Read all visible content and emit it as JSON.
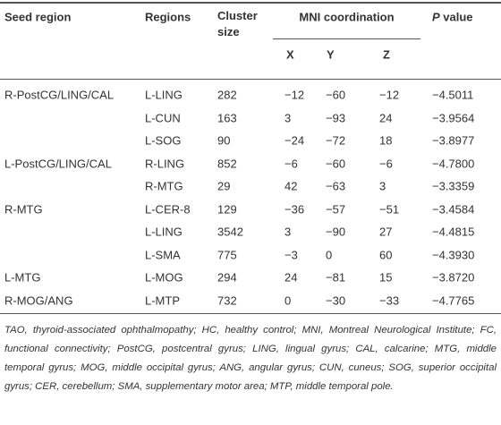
{
  "table": {
    "header": {
      "seed_region": "Seed region",
      "regions": "Regions",
      "cluster_size": "Cluster size",
      "mni": "MNI coordination",
      "x": "X",
      "y": "Y",
      "z": "Z",
      "p_italic": "P",
      "p_rest": "value"
    },
    "rows": [
      [
        "R-PostCG/LING/CAL",
        "L-LING",
        "282",
        "−12",
        "−60",
        "−12",
        "−4.5011"
      ],
      [
        null,
        "L-CUN",
        "163",
        "3",
        "−93",
        "24",
        "−3.9564"
      ],
      [
        null,
        "L-SOG",
        "90",
        "−24",
        "−72",
        "18",
        "−3.8977"
      ],
      [
        "L-PostCG/LING/CAL",
        "R-LING",
        "852",
        "−6",
        "−60",
        "−6",
        "−4.7800"
      ],
      [
        null,
        "R-MTG",
        "29",
        "42",
        "−63",
        "3",
        "−3.3359"
      ],
      [
        "R-MTG",
        "L-CER-8",
        "129",
        "−36",
        "−57",
        "−51",
        "−3.4584"
      ],
      [
        null,
        "L-LING",
        "3542",
        "3",
        "−90",
        "27",
        "−4.4815"
      ],
      [
        null,
        "L-SMA",
        "775",
        "−3",
        "0",
        "60",
        "−4.3930"
      ],
      [
        "L-MTG",
        "L-MOG",
        "294",
        "24",
        "−81",
        "15",
        "−3.8720"
      ],
      [
        "R-MOG/ANG",
        "L-MTP",
        "732",
        "0",
        "−30",
        "−33",
        "−4.7765"
      ]
    ],
    "footnote": "TAO, thyroid-associated ophthalmopathy; HC, healthy control; MNI, Montreal Neurological Institute; FC, functional connectivity; PostCG, postcentral gyrus; LING, lingual gyrus; CAL, calcarine; MTG, middle temporal gyrus; MOG, middle occipital gyrus; ANG, angular gyrus; CUN, cuneus; SOG, superior occipital gyrus; CER, cerebellum; SMA, supplementary motor area; MTP, middle temporal pole."
  }
}
